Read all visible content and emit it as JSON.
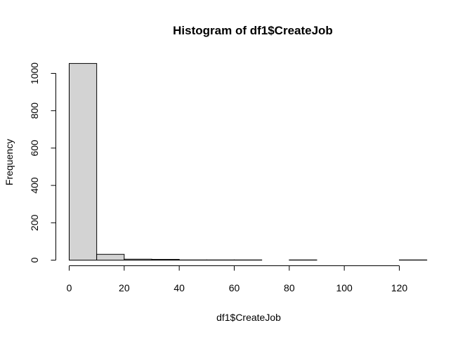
{
  "chart_data": {
    "type": "bar",
    "title": "Histogram of df1$CreateJob",
    "xlabel": "df1$CreateJob",
    "ylabel": "Frequency",
    "bins": [
      {
        "start": 0,
        "end": 10,
        "count": 1053
      },
      {
        "start": 10,
        "end": 20,
        "count": 31
      },
      {
        "start": 20,
        "end": 30,
        "count": 5
      },
      {
        "start": 30,
        "end": 40,
        "count": 4
      },
      {
        "start": 40,
        "end": 50,
        "count": 1
      },
      {
        "start": 50,
        "end": 60,
        "count": 1
      },
      {
        "start": 60,
        "end": 70,
        "count": 1
      },
      {
        "start": 70,
        "end": 80,
        "count": 0
      },
      {
        "start": 80,
        "end": 90,
        "count": 1
      },
      {
        "start": 90,
        "end": 100,
        "count": 0
      },
      {
        "start": 100,
        "end": 110,
        "count": 0
      },
      {
        "start": 110,
        "end": 120,
        "count": 0
      },
      {
        "start": 120,
        "end": 130,
        "count": 1
      }
    ],
    "xlim": [
      0,
      130
    ],
    "ylim": [
      0,
      1053
    ],
    "x_ticks": [
      0,
      20,
      40,
      60,
      80,
      100,
      120
    ],
    "y_ticks": [
      0,
      200,
      400,
      600,
      800,
      1000
    ],
    "grid": false,
    "legend": "none",
    "bar_color": "#d3d3d3",
    "border_color": "#000000"
  }
}
